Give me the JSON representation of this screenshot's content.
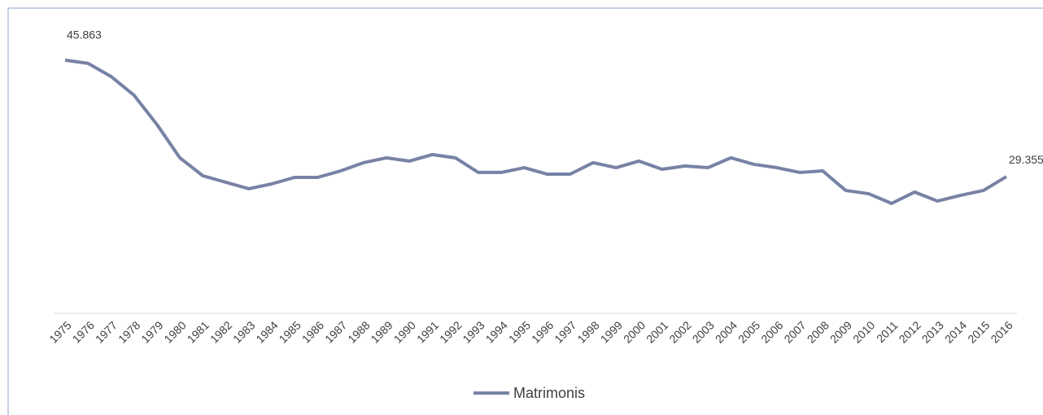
{
  "chart_data": {
    "type": "line",
    "categories": [
      "1975",
      "1976",
      "1977",
      "1978",
      "1979",
      "1980",
      "1981",
      "1982",
      "1983",
      "1984",
      "1985",
      "1986",
      "1987",
      "1988",
      "1989",
      "1990",
      "1991",
      "1992",
      "1993",
      "1994",
      "1995",
      "1996",
      "1997",
      "1998",
      "1999",
      "2000",
      "2001",
      "2002",
      "2003",
      "2004",
      "2005",
      "2006",
      "2007",
      "2008",
      "2009",
      "2010",
      "2011",
      "2012",
      "2013",
      "2014",
      "2015",
      "2016"
    ],
    "series": [
      {
        "name": "Matrimonis",
        "color": "#7782a5",
        "values": [
          45863,
          45400,
          43550,
          40900,
          36750,
          32020,
          29480,
          28560,
          27640,
          28330,
          29250,
          29250,
          30170,
          31330,
          32020,
          31560,
          32480,
          32020,
          29950,
          29950,
          30630,
          29710,
          29710,
          31330,
          30630,
          31560,
          30400,
          30860,
          30630,
          32020,
          31100,
          30630,
          29950,
          30170,
          27400,
          26940,
          25560,
          27170,
          25900,
          26710,
          27400,
          29355
        ],
        "value_labels": [
          "45.863",
          null,
          null,
          null,
          null,
          null,
          null,
          null,
          null,
          null,
          null,
          null,
          null,
          null,
          null,
          null,
          null,
          null,
          null,
          null,
          null,
          null,
          null,
          null,
          null,
          null,
          null,
          null,
          null,
          null,
          null,
          null,
          null,
          null,
          null,
          null,
          null,
          null,
          null,
          null,
          null,
          "29.355"
        ]
      }
    ],
    "ylim": [
      10000,
      50000
    ],
    "legend": "bottom"
  }
}
